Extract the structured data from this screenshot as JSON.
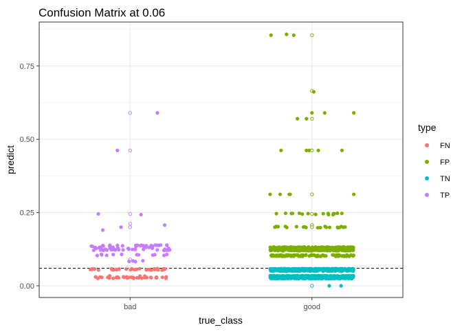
{
  "chart_data": {
    "type": "scatter",
    "title": "Confusion Matrix at 0.06",
    "xlabel": "true_class",
    "ylabel": "predict",
    "categories": [
      "bad",
      "good"
    ],
    "ylim": [
      -0.04,
      0.9
    ],
    "yticks": [
      {
        "value": 0.0,
        "label": "0.00"
      },
      {
        "value": 0.25,
        "label": "0.25"
      },
      {
        "value": 0.5,
        "label": "0.50"
      },
      {
        "value": 0.75,
        "label": "0.75"
      }
    ],
    "threshold": 0.06,
    "grid": true,
    "legend": {
      "title": "type",
      "position": "right"
    },
    "series": [
      {
        "name": "FN",
        "color": "#F8766D",
        "points": [
          {
            "x": "bad",
            "y": 0.056,
            "n": 34,
            "spread": 0.44
          },
          {
            "x": "bad",
            "y": 0.028,
            "n": 34,
            "spread": 0.44
          },
          {
            "x": "bad",
            "y": 0.032,
            "n": 4,
            "spread": 0.4
          }
        ]
      },
      {
        "name": "FP",
        "color": "#7CAE00",
        "points": [
          {
            "x": "good",
            "y": 0.855,
            "j": -0.45
          },
          {
            "x": "good",
            "y": 0.858,
            "j": -0.28
          },
          {
            "x": "good",
            "y": 0.855,
            "j": -0.2
          },
          {
            "x": "good",
            "y": 0.855,
            "j": 0.0,
            "hollow": true
          },
          {
            "x": "good",
            "y": 0.665,
            "j": 0.0,
            "hollow": true
          },
          {
            "x": "good",
            "y": 0.662,
            "j": 0.02
          },
          {
            "x": "good",
            "y": 0.59,
            "j": 0.0
          },
          {
            "x": "good",
            "y": 0.59,
            "j": 0.14
          },
          {
            "x": "good",
            "y": 0.59,
            "j": 0.46
          },
          {
            "x": "good",
            "y": 0.57,
            "j": 0.0,
            "hollow": true
          },
          {
            "x": "good",
            "y": 0.57,
            "j": -0.16
          },
          {
            "x": "good",
            "y": 0.57,
            "j": -0.06
          },
          {
            "x": "good",
            "y": 0.462,
            "j": -0.34
          },
          {
            "x": "good",
            "y": 0.462,
            "j": -0.06
          },
          {
            "x": "good",
            "y": 0.462,
            "j": -0.03
          },
          {
            "x": "good",
            "y": 0.462,
            "j": 0.0,
            "hollow": true
          },
          {
            "x": "good",
            "y": 0.462,
            "j": 0.07
          },
          {
            "x": "good",
            "y": 0.462,
            "j": 0.33
          },
          {
            "x": "good",
            "y": 0.312,
            "j": -0.46
          },
          {
            "x": "good",
            "y": 0.312,
            "j": -0.35
          },
          {
            "x": "good",
            "y": 0.312,
            "j": -0.25
          },
          {
            "x": "good",
            "y": 0.312,
            "j": -0.24
          },
          {
            "x": "good",
            "y": 0.312,
            "j": 0.0,
            "hollow": true
          },
          {
            "x": "good",
            "y": 0.312,
            "j": 0.46
          },
          {
            "x": "good",
            "y": 0.245,
            "n": 16,
            "spread": 0.44
          },
          {
            "x": "good",
            "y": 0.245,
            "j": 0.0,
            "hollow": true
          },
          {
            "x": "good",
            "y": 0.2,
            "n": 20,
            "spread": 0.44
          },
          {
            "x": "good",
            "y": 0.207,
            "j": 0.0,
            "hollow": true
          },
          {
            "x": "good",
            "y": 0.2,
            "j": 0.0,
            "hollow": true
          },
          {
            "x": "good",
            "y": 0.13,
            "n": 150,
            "spread": 0.46
          },
          {
            "x": "good",
            "y": 0.122,
            "n": 130,
            "spread": 0.46
          },
          {
            "x": "good",
            "y": 0.103,
            "n": 90,
            "spread": 0.46
          }
        ]
      },
      {
        "name": "TN",
        "color": "#00BFC4",
        "points": [
          {
            "x": "good",
            "y": 0.056,
            "n": 320,
            "spread": 0.46
          },
          {
            "x": "good",
            "y": 0.052,
            "n": 140,
            "spread": 0.46
          },
          {
            "x": "good",
            "y": 0.032,
            "n": 320,
            "spread": 0.46
          },
          {
            "x": "good",
            "y": 0.027,
            "n": 320,
            "spread": 0.46
          },
          {
            "x": "good",
            "y": 0.0,
            "j": 0.0,
            "hollow": true
          },
          {
            "x": "good",
            "y": 0.0,
            "j": 0.19
          },
          {
            "x": "good",
            "y": 0.0,
            "j": 0.32
          }
        ]
      },
      {
        "name": "TP",
        "color": "#C77CFF",
        "points": [
          {
            "x": "bad",
            "y": 0.59,
            "j": 0.0,
            "hollow": true
          },
          {
            "x": "bad",
            "y": 0.59,
            "j": 0.3
          },
          {
            "x": "bad",
            "y": 0.462,
            "j": -0.14
          },
          {
            "x": "bad",
            "y": 0.462,
            "j": 0.0,
            "hollow": true
          },
          {
            "x": "bad",
            "y": 0.245,
            "j": -0.35
          },
          {
            "x": "bad",
            "y": 0.245,
            "j": 0.0,
            "hollow": true
          },
          {
            "x": "bad",
            "y": 0.243,
            "j": 0.12
          },
          {
            "x": "bad",
            "y": 0.212,
            "j": 0.0,
            "hollow": true
          },
          {
            "x": "bad",
            "y": 0.2,
            "j": 0.0,
            "hollow": true
          },
          {
            "x": "bad",
            "y": 0.2,
            "j": -0.1
          },
          {
            "x": "bad",
            "y": 0.207,
            "j": 0.38
          },
          {
            "x": "bad",
            "y": 0.19,
            "j": -0.3
          },
          {
            "x": "bad",
            "y": 0.137,
            "n": 26,
            "spread": 0.44
          },
          {
            "x": "bad",
            "y": 0.13,
            "n": 12,
            "spread": 0.44
          },
          {
            "x": "bad",
            "y": 0.123,
            "n": 26,
            "spread": 0.44
          },
          {
            "x": "bad",
            "y": 0.105,
            "n": 12,
            "spread": 0.44
          },
          {
            "x": "bad",
            "y": 0.09,
            "j": 0.0,
            "hollow": true
          },
          {
            "x": "bad",
            "y": 0.083,
            "n": 4,
            "spread": 0.2
          }
        ]
      }
    ]
  }
}
